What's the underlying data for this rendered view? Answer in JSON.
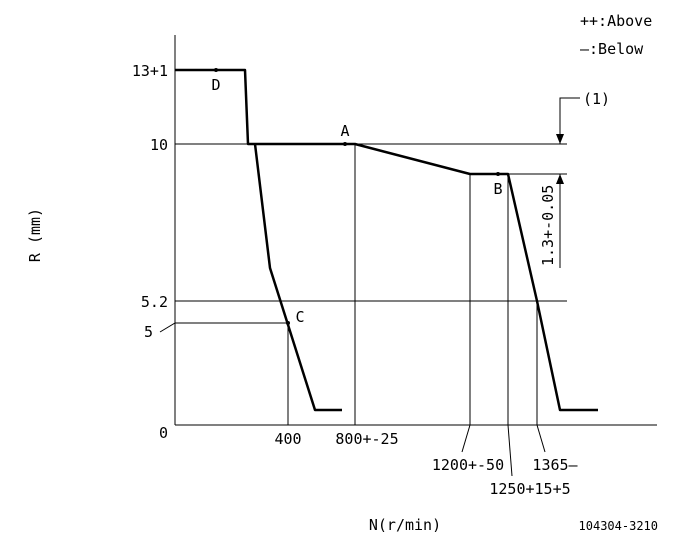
{
  "legend": {
    "above": "++:Above",
    "below": "—:Below"
  },
  "axes": {
    "y_label": "R (mm)",
    "x_label": "N(r/min)",
    "y_ticks": [
      "13+1",
      "10",
      "5.2",
      "5",
      "0"
    ],
    "x_ticks": [
      "400",
      "800+-25",
      "1200+-50",
      "1250+15+5",
      "1365—"
    ]
  },
  "points": {
    "a": "A",
    "b": "B",
    "c": "C",
    "d": "D"
  },
  "annotations": {
    "note": "(1)",
    "dimension": "1.3+-0.05"
  },
  "drawing_number": "104304-3210"
}
